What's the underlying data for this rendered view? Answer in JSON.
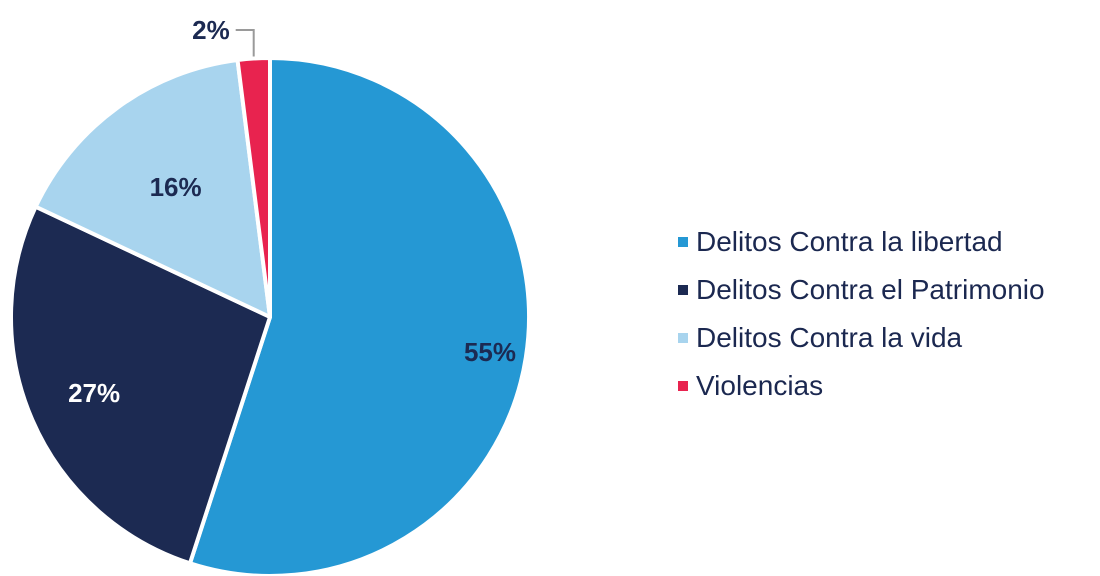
{
  "chart_data": {
    "type": "pie",
    "title": "",
    "categories": [
      "Delitos Contra la libertad",
      "Delitos Contra el Patrimonio",
      "Delitos Contra la vida",
      "Violencias"
    ],
    "values": [
      55,
      27,
      16,
      2
    ],
    "labels": [
      "55%",
      "27%",
      "16%",
      "2%"
    ],
    "colors": [
      "#2598d4",
      "#1c2a52",
      "#a8d4ee",
      "#e8234f"
    ],
    "label_colors": [
      "#1c2a52",
      "#ffffff",
      "#1c2a52",
      "#1c2a52"
    ],
    "start_angle": "12 o'clock",
    "direction": "clockwise",
    "legend_position": "right"
  }
}
